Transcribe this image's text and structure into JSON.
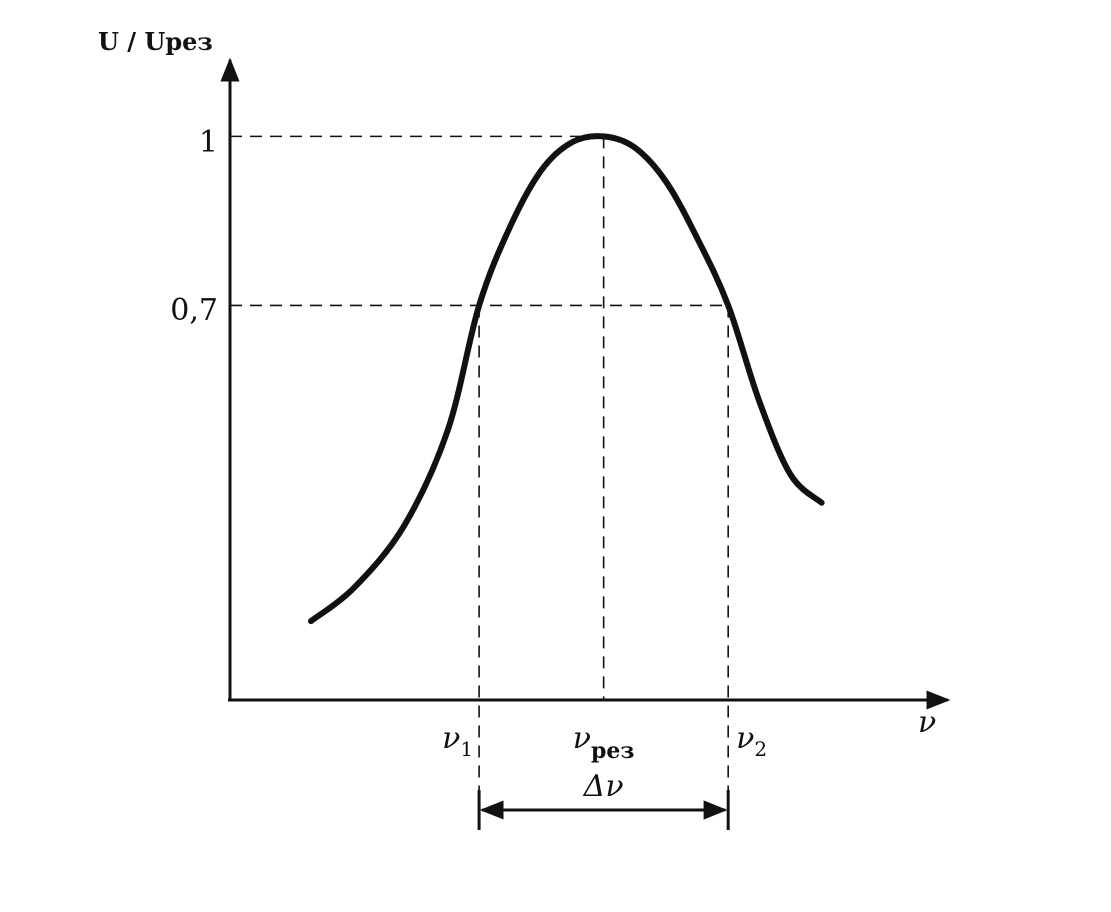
{
  "chart_data": {
    "type": "line",
    "title": "",
    "ylabel": "U / Uрез",
    "xlabel": "ν",
    "y_ticks": [
      {
        "value": 1,
        "label": "1"
      },
      {
        "value": 0.7,
        "label": "0,7"
      }
    ],
    "x_ticks": [
      {
        "value": 0.8,
        "label": "ν",
        "sub": "1"
      },
      {
        "value": 1.0,
        "label": "ν",
        "sub": "рез"
      },
      {
        "value": 1.2,
        "label": "ν",
        "sub": "2"
      }
    ],
    "bandwidth_label": "Δν",
    "xlim": [
      0.4,
      1.5
    ],
    "ylim": [
      0,
      1.1
    ],
    "grid": false,
    "series": [
      {
        "x": [
          0.53,
          0.6,
          0.68,
          0.75,
          0.8,
          0.85,
          0.9,
          0.95,
          1.0,
          1.05,
          1.1,
          1.15,
          1.2,
          1.25,
          1.3,
          1.35
        ],
        "y": [
          0.14,
          0.2,
          0.31,
          0.48,
          0.7,
          0.84,
          0.94,
          0.99,
          1.0,
          0.98,
          0.92,
          0.82,
          0.7,
          0.53,
          0.4,
          0.35
        ]
      }
    ],
    "guides": {
      "peak": {
        "x": 1.0,
        "y": 1.0
      },
      "half_power": {
        "y": 0.7,
        "x1": 0.8,
        "x2": 1.2
      }
    }
  }
}
